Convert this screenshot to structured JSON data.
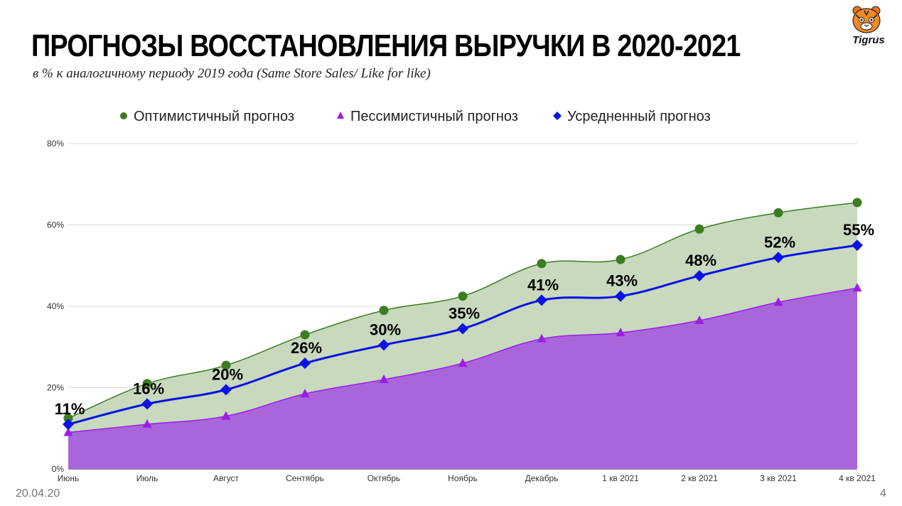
{
  "page": {
    "title": "ПРОГНОЗЫ ВОССТАНОВЛЕНИЯ ВЫРУЧКИ В 2020-2021",
    "subtitle": "в % к аналогичному периоду 2019 года (Same Store Sales/ Like for like)",
    "footer_date": "20.04.20",
    "page_number": "4",
    "logo_text": "Tigrus"
  },
  "chart_data": {
    "type": "area",
    "title": "",
    "xlabel": "",
    "ylabel": "",
    "categories": [
      "Июнь",
      "Июль",
      "Август",
      "Сентябрь",
      "Октябрь",
      "Ноябрь",
      "Декабрь",
      "1 кв 2021",
      "2 кв 2021",
      "3 кв 2021",
      "4 кв 2021"
    ],
    "ylim": [
      0,
      80
    ],
    "y_ticks": [
      0,
      20,
      40,
      60,
      80
    ],
    "y_tick_labels": [
      "0%",
      "20%",
      "40%",
      "60%",
      "80%"
    ],
    "grid": true,
    "legend_position": "top",
    "series": [
      {
        "name": "Оптимистичный прогноз",
        "marker": "circle",
        "color": "#3c7d22",
        "fill": "#c8d9be",
        "values": [
          12.5,
          21,
          25.5,
          33,
          39,
          42.5,
          50.5,
          51.5,
          59,
          63,
          65.5
        ]
      },
      {
        "name": "Пессимистичный прогноз",
        "marker": "triangle",
        "color": "#9b1ee8",
        "fill": "#a966db",
        "values": [
          9,
          11,
          13,
          18.5,
          22,
          26,
          32,
          33.5,
          36.5,
          41,
          44.5
        ]
      },
      {
        "name": "Усредненный прогноз",
        "marker": "diamond",
        "color": "#0a12e6",
        "values": [
          11,
          16,
          19.5,
          26,
          30.5,
          34.5,
          41.5,
          42.5,
          47.5,
          52,
          55
        ],
        "data_labels": [
          "11%",
          "16%",
          "20%",
          "26%",
          "30%",
          "35%",
          "41%",
          "43%",
          "48%",
          "52%",
          "55%"
        ]
      }
    ]
  }
}
